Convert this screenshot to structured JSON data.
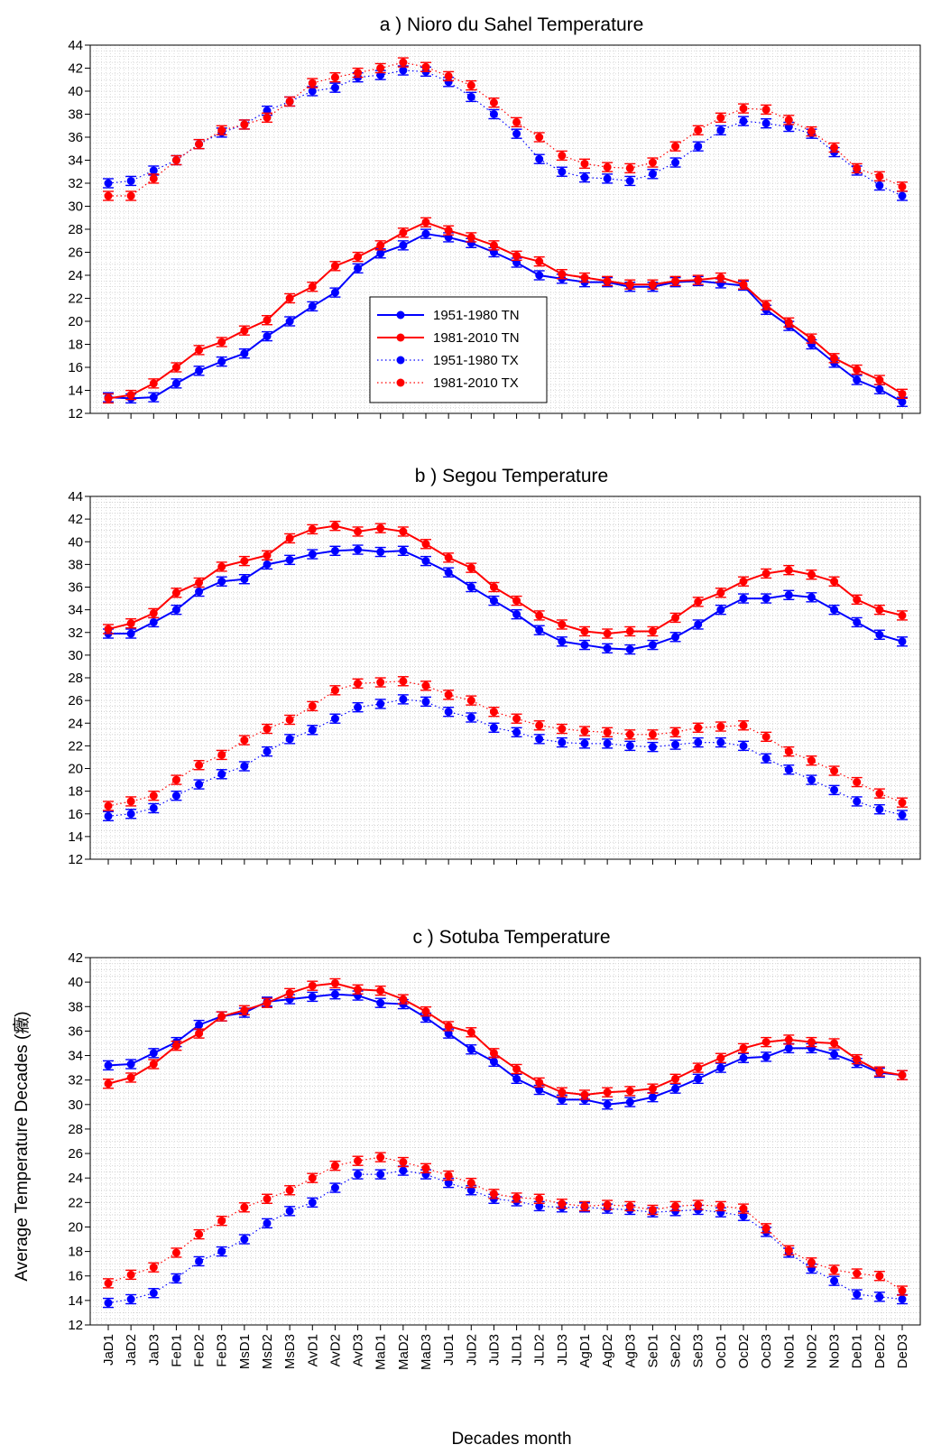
{
  "figure": {
    "xlabel": "Decades month",
    "ylabel": "Average Temperature Decades (癥)"
  },
  "chart_data": [
    {
      "type": "line",
      "title": "a ) Nioro du Sahel Temperature",
      "ylim": [
        12,
        44
      ],
      "yticks": [
        12,
        14,
        16,
        18,
        20,
        22,
        24,
        26,
        28,
        30,
        32,
        34,
        36,
        38,
        40,
        42,
        44
      ],
      "grid": true,
      "show_xtick_labels": false,
      "legend": {
        "show": true,
        "position": "center-left"
      },
      "categories": [
        "JaD1",
        "JaD2",
        "JaD3",
        "FeD1",
        "FeD2",
        "FeD3",
        "MsD1",
        "MsD2",
        "MsD3",
        "AvD1",
        "AvD2",
        "AvD3",
        "MaD1",
        "MaD2",
        "MaD3",
        "JuD1",
        "JuD2",
        "JuD3",
        "JLD1",
        "JLD2",
        "JLD3",
        "AgD1",
        "AgD2",
        "AgD3",
        "SeD1",
        "SeD2",
        "SeD3",
        "OcD1",
        "OcD2",
        "OcD3",
        "NoD1",
        "NoD2",
        "NoD3",
        "DeD1",
        "DeD2",
        "DeD3"
      ],
      "series": [
        {
          "name": "1951-1980 TN",
          "color": "#0000ff",
          "style": "solid",
          "values": [
            13.4,
            13.3,
            13.4,
            14.6,
            15.7,
            16.5,
            17.2,
            18.7,
            20.0,
            21.3,
            22.5,
            24.6,
            25.9,
            26.6,
            27.6,
            27.3,
            26.8,
            26.0,
            25.1,
            24.0,
            23.7,
            23.4,
            23.4,
            23.0,
            23.0,
            23.4,
            23.5,
            23.3,
            23.1,
            21.0,
            19.6,
            18.0,
            16.4,
            14.9,
            14.1,
            13.0
          ]
        },
        {
          "name": "1981-2010 TN",
          "color": "#ff0000",
          "style": "solid",
          "values": [
            13.3,
            13.6,
            14.6,
            16.0,
            17.5,
            18.2,
            19.2,
            20.1,
            22.0,
            23.0,
            24.8,
            25.6,
            26.6,
            27.7,
            28.6,
            27.9,
            27.3,
            26.6,
            25.7,
            25.2,
            24.1,
            23.8,
            23.5,
            23.2,
            23.2,
            23.5,
            23.6,
            23.8,
            23.2,
            21.4,
            19.9,
            18.5,
            16.8,
            15.8,
            14.9,
            13.7
          ]
        },
        {
          "name": "1951-1980 TX",
          "color": "#0000ff",
          "style": "dotted",
          "values": [
            32.0,
            32.2,
            33.1,
            34.0,
            35.4,
            36.4,
            37.1,
            38.3,
            39.1,
            40.0,
            40.3,
            41.2,
            41.4,
            41.8,
            41.7,
            40.8,
            39.5,
            38.0,
            36.3,
            34.1,
            33.0,
            32.5,
            32.4,
            32.2,
            32.8,
            33.8,
            35.2,
            36.6,
            37.4,
            37.2,
            36.9,
            36.3,
            34.7,
            33.1,
            31.8,
            30.9
          ]
        },
        {
          "name": "1981-2010 TX",
          "color": "#ff0000",
          "style": "dotted",
          "values": [
            30.9,
            30.9,
            32.4,
            34.0,
            35.4,
            36.6,
            37.1,
            37.7,
            39.1,
            40.7,
            41.2,
            41.6,
            42.0,
            42.5,
            42.1,
            41.3,
            40.5,
            39.0,
            37.3,
            36.0,
            34.4,
            33.7,
            33.4,
            33.3,
            33.8,
            35.2,
            36.6,
            37.7,
            38.5,
            38.4,
            37.5,
            36.5,
            35.1,
            33.3,
            32.6,
            31.7
          ]
        }
      ]
    },
    {
      "type": "line",
      "title": "b ) Segou Temperature",
      "ylim": [
        12,
        44
      ],
      "yticks": [
        12,
        14,
        16,
        18,
        20,
        22,
        24,
        26,
        28,
        30,
        32,
        34,
        36,
        38,
        40,
        42,
        44
      ],
      "grid": true,
      "show_xtick_labels": false,
      "legend": {
        "show": false
      },
      "categories": [
        "JaD1",
        "JaD2",
        "JaD3",
        "FeD1",
        "FeD2",
        "FeD3",
        "MsD1",
        "MsD2",
        "MsD3",
        "AvD1",
        "AvD2",
        "AvD3",
        "MaD1",
        "MaD2",
        "MaD3",
        "JuD1",
        "JuD2",
        "JuD3",
        "JLD1",
        "JLD2",
        "JLD3",
        "AgD1",
        "AgD2",
        "AgD3",
        "SeD1",
        "SeD2",
        "SeD3",
        "OcD1",
        "OcD2",
        "OcD3",
        "NoD1",
        "NoD2",
        "NoD3",
        "DeD1",
        "DeD2",
        "DeD3"
      ],
      "series": [
        {
          "name": "1951-1980 TX",
          "color": "#0000ff",
          "style": "solid",
          "values": [
            31.9,
            31.9,
            32.9,
            34.0,
            35.6,
            36.5,
            36.7,
            38.0,
            38.4,
            38.9,
            39.2,
            39.3,
            39.1,
            39.2,
            38.3,
            37.3,
            36.0,
            34.8,
            33.6,
            32.2,
            31.2,
            30.9,
            30.6,
            30.5,
            30.9,
            31.6,
            32.7,
            34.0,
            35.0,
            35.0,
            35.3,
            35.1,
            34.0,
            32.9,
            31.8,
            31.2
          ]
        },
        {
          "name": "1981-2010 TX",
          "color": "#ff0000",
          "style": "solid",
          "values": [
            32.3,
            32.8,
            33.7,
            35.5,
            36.4,
            37.8,
            38.3,
            38.8,
            40.3,
            41.1,
            41.4,
            40.9,
            41.2,
            40.9,
            39.8,
            38.6,
            37.7,
            36.0,
            34.8,
            33.5,
            32.7,
            32.1,
            31.9,
            32.1,
            32.1,
            33.3,
            34.7,
            35.5,
            36.5,
            37.2,
            37.5,
            37.1,
            36.5,
            34.9,
            34.0,
            33.5
          ]
        },
        {
          "name": "1951-1980 TN",
          "color": "#0000ff",
          "style": "dotted",
          "values": [
            15.8,
            16.0,
            16.5,
            17.6,
            18.6,
            19.5,
            20.2,
            21.5,
            22.6,
            23.4,
            24.4,
            25.4,
            25.7,
            26.1,
            25.9,
            25.0,
            24.5,
            23.6,
            23.2,
            22.6,
            22.3,
            22.2,
            22.2,
            22.0,
            21.9,
            22.1,
            22.3,
            22.3,
            22.0,
            20.9,
            19.9,
            19.0,
            18.1,
            17.1,
            16.4,
            15.9
          ]
        },
        {
          "name": "1981-2010 TN",
          "color": "#ff0000",
          "style": "dotted",
          "values": [
            16.7,
            17.1,
            17.6,
            19.0,
            20.3,
            21.2,
            22.5,
            23.5,
            24.3,
            25.5,
            26.9,
            27.5,
            27.6,
            27.7,
            27.3,
            26.5,
            26.0,
            25.0,
            24.4,
            23.8,
            23.5,
            23.3,
            23.2,
            23.0,
            23.0,
            23.2,
            23.6,
            23.7,
            23.8,
            22.8,
            21.5,
            20.7,
            19.8,
            18.8,
            17.8,
            17.0
          ]
        }
      ]
    },
    {
      "type": "line",
      "title": "c ) Sotuba Temperature",
      "ylim": [
        12,
        42
      ],
      "yticks": [
        12,
        14,
        16,
        18,
        20,
        22,
        24,
        26,
        28,
        30,
        32,
        34,
        36,
        38,
        40,
        42
      ],
      "grid": true,
      "show_xtick_labels": true,
      "legend": {
        "show": false
      },
      "categories": [
        "JaD1",
        "JaD2",
        "JaD3",
        "FeD1",
        "FeD2",
        "FeD3",
        "MsD1",
        "MsD2",
        "MsD3",
        "AvD1",
        "AvD2",
        "AvD3",
        "MaD1",
        "MaD2",
        "MaD3",
        "JuD1",
        "JuD2",
        "JuD3",
        "JLD1",
        "JLD2",
        "JLD3",
        "AgD1",
        "AgD2",
        "AgD3",
        "SeD1",
        "SeD2",
        "SeD3",
        "OcD1",
        "OcD2",
        "OcD3",
        "NoD1",
        "NoD2",
        "NoD3",
        "DeD1",
        "DeD2",
        "DeD3"
      ],
      "series": [
        {
          "name": "1951-1980 TX",
          "color": "#0000ff",
          "style": "solid",
          "values": [
            33.2,
            33.3,
            34.2,
            35.1,
            36.5,
            37.2,
            37.5,
            38.4,
            38.6,
            38.8,
            39.0,
            38.9,
            38.3,
            38.2,
            37.1,
            35.8,
            34.5,
            33.5,
            32.1,
            31.2,
            30.4,
            30.4,
            30.0,
            30.2,
            30.6,
            31.3,
            32.1,
            33.0,
            33.8,
            33.9,
            34.6,
            34.6,
            34.1,
            33.4,
            32.6,
            32.4
          ]
        },
        {
          "name": "1981-2010 TX",
          "color": "#ff0000",
          "style": "solid",
          "values": [
            31.7,
            32.2,
            33.3,
            34.8,
            35.8,
            37.2,
            37.7,
            38.3,
            39.1,
            39.7,
            39.9,
            39.4,
            39.3,
            38.6,
            37.6,
            36.4,
            35.9,
            34.2,
            32.9,
            31.8,
            31.0,
            30.8,
            31.0,
            31.1,
            31.3,
            32.1,
            33.0,
            33.8,
            34.6,
            35.1,
            35.3,
            35.1,
            35.0,
            33.7,
            32.7,
            32.4
          ]
        },
        {
          "name": "1951-1980 TN",
          "color": "#0000ff",
          "style": "dotted",
          "values": [
            13.8,
            14.1,
            14.6,
            15.8,
            17.2,
            18.0,
            19.0,
            20.3,
            21.3,
            22.0,
            23.2,
            24.3,
            24.3,
            24.6,
            24.3,
            23.6,
            23.0,
            22.3,
            22.1,
            21.7,
            21.6,
            21.6,
            21.5,
            21.4,
            21.2,
            21.3,
            21.4,
            21.2,
            20.9,
            19.6,
            17.9,
            16.6,
            15.6,
            14.5,
            14.3,
            14.1
          ]
        },
        {
          "name": "1981-2010 TN",
          "color": "#ff0000",
          "style": "dotted",
          "values": [
            15.4,
            16.1,
            16.7,
            17.9,
            19.4,
            20.5,
            21.6,
            22.3,
            23.0,
            24.0,
            25.0,
            25.4,
            25.7,
            25.3,
            24.8,
            24.2,
            23.6,
            22.7,
            22.4,
            22.3,
            21.9,
            21.7,
            21.8,
            21.7,
            21.4,
            21.7,
            21.8,
            21.7,
            21.5,
            19.9,
            18.1,
            17.1,
            16.5,
            16.2,
            16.0,
            14.8
          ]
        }
      ]
    }
  ]
}
